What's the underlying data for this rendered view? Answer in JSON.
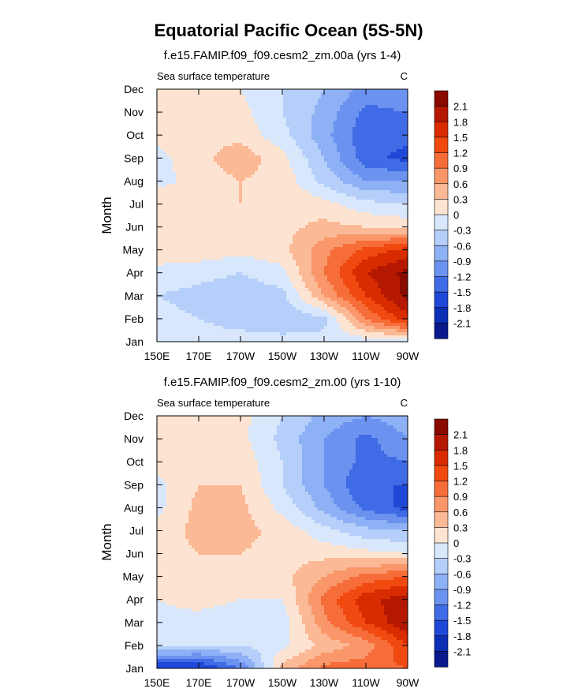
{
  "title": "Equatorial Pacific Ocean (5S-5N)",
  "colorbar": {
    "labels": [
      "2.1",
      "1.8",
      "1.5",
      "1.2",
      "0.9",
      "0.6",
      "0.3",
      "0",
      "-0.3",
      "-0.6",
      "-0.9",
      "-1.2",
      "-1.5",
      "-1.8",
      "-2.1"
    ],
    "levels": [
      2.1,
      1.8,
      1.5,
      1.2,
      0.9,
      0.6,
      0.3,
      0,
      -0.3,
      -0.6,
      -0.9,
      -1.2,
      -1.5,
      -1.8,
      -2.1
    ],
    "colors": [
      "#8a0a00",
      "#b41800",
      "#d92b00",
      "#f04a10",
      "#f76d3a",
      "#f9976a",
      "#fbb996",
      "#fde4d2",
      "#d8e7fb",
      "#b5cffa",
      "#8eb0f5",
      "#6b92ef",
      "#3f6be6",
      "#1f48d8",
      "#0b2eb5",
      "#0a1a8c"
    ]
  },
  "chart_data": [
    {
      "type": "heatmap",
      "title": "f.e15.FAMIP.f09_f09.cesm2_zm.00a (yrs 1-4)",
      "left_string": "Sea surface temperature",
      "right_string": "C",
      "xlabel": "",
      "ylabel": "Month",
      "x_ticks": [
        "150E",
        "170E",
        "170W",
        "150W",
        "130W",
        "110W",
        "90W"
      ],
      "x_values": [
        150,
        170,
        190,
        210,
        230,
        250,
        270
      ],
      "y_ticks": [
        "Jan",
        "Feb",
        "Mar",
        "Apr",
        "May",
        "Jun",
        "Jul",
        "Aug",
        "Sep",
        "Oct",
        "Nov",
        "Dec"
      ],
      "xlim": [
        150,
        270
      ],
      "ylim": [
        1,
        12
      ],
      "grid": [
        [
          -0.2,
          -0.2,
          -0.2,
          -0.2,
          -0.2,
          -0.2,
          -0.2
        ],
        [
          -0.2,
          -0.3,
          -0.4,
          -0.5,
          -0.4,
          0.9,
          1.7
        ],
        [
          -0.3,
          -0.4,
          -0.5,
          -0.4,
          0.6,
          1.5,
          2.2
        ],
        [
          -0.1,
          -0.2,
          -0.3,
          -0.1,
          0.9,
          1.8,
          2.2
        ],
        [
          0.2,
          0.2,
          0.1,
          0.2,
          0.8,
          1.3,
          1.6
        ],
        [
          0.2,
          0.2,
          0.2,
          0.2,
          0.4,
          0.3,
          0.2
        ],
        [
          0.2,
          0.2,
          0.3,
          0.3,
          0.1,
          -0.2,
          -0.3
        ],
        [
          -0.1,
          0.1,
          0.3,
          0.2,
          -0.4,
          -0.9,
          -0.9
        ],
        [
          -0.1,
          0.2,
          0.5,
          0.1,
          -0.6,
          -1.4,
          -1.6
        ],
        [
          0.1,
          0.2,
          0.2,
          -0.2,
          -0.8,
          -1.4,
          -1.4
        ],
        [
          0.2,
          0.2,
          0.1,
          -0.3,
          -0.7,
          -1.3,
          -1.2
        ],
        [
          0.2,
          0.2,
          0.0,
          -0.3,
          -0.6,
          -1.0,
          -0.9
        ]
      ]
    },
    {
      "type": "heatmap",
      "title": "f.e15.FAMIP.f09_f09.cesm2_zm.00 (yrs 1-10)",
      "left_string": "Sea surface temperature",
      "right_string": "C",
      "xlabel": "",
      "ylabel": "Month",
      "x_ticks": [
        "150E",
        "170E",
        "170W",
        "150W",
        "130W",
        "110W",
        "90W"
      ],
      "x_values": [
        150,
        170,
        190,
        210,
        230,
        250,
        270
      ],
      "y_ticks": [
        "Jan",
        "Feb",
        "Mar",
        "Apr",
        "May",
        "Jun",
        "Jul",
        "Aug",
        "Sep",
        "Oct",
        "Nov",
        "Dec"
      ],
      "xlim": [
        150,
        270
      ],
      "ylim": [
        1,
        12
      ],
      "grid": [
        [
          -1.9,
          -1.9,
          -1.2,
          0.4,
          1.0,
          1.1,
          1.2
        ],
        [
          -0.2,
          -0.3,
          -0.3,
          -0.1,
          0.4,
          0.7,
          1.5
        ],
        [
          -0.1,
          -0.1,
          -0.2,
          -0.2,
          0.8,
          1.5,
          2.1
        ],
        [
          0.0,
          0.1,
          0.0,
          0.0,
          1.0,
          1.7,
          2.0
        ],
        [
          0.2,
          0.3,
          0.2,
          0.2,
          0.6,
          1.0,
          1.2
        ],
        [
          0.2,
          0.3,
          0.3,
          0.2,
          0.2,
          0.1,
          0.0
        ],
        [
          0.1,
          0.4,
          0.4,
          0.2,
          -0.2,
          -0.5,
          -0.6
        ],
        [
          -0.1,
          0.4,
          0.4,
          -0.1,
          -0.7,
          -1.3,
          -1.6
        ],
        [
          -0.1,
          0.3,
          0.3,
          -0.3,
          -0.9,
          -1.5,
          -1.5
        ],
        [
          0.1,
          0.3,
          0.2,
          -0.3,
          -0.9,
          -1.3,
          -1.2
        ],
        [
          0.2,
          0.3,
          0.1,
          -0.4,
          -0.9,
          -1.3,
          -0.9
        ],
        [
          0.2,
          0.3,
          0.1,
          -0.3,
          -0.7,
          -0.9,
          -0.7
        ]
      ]
    }
  ]
}
